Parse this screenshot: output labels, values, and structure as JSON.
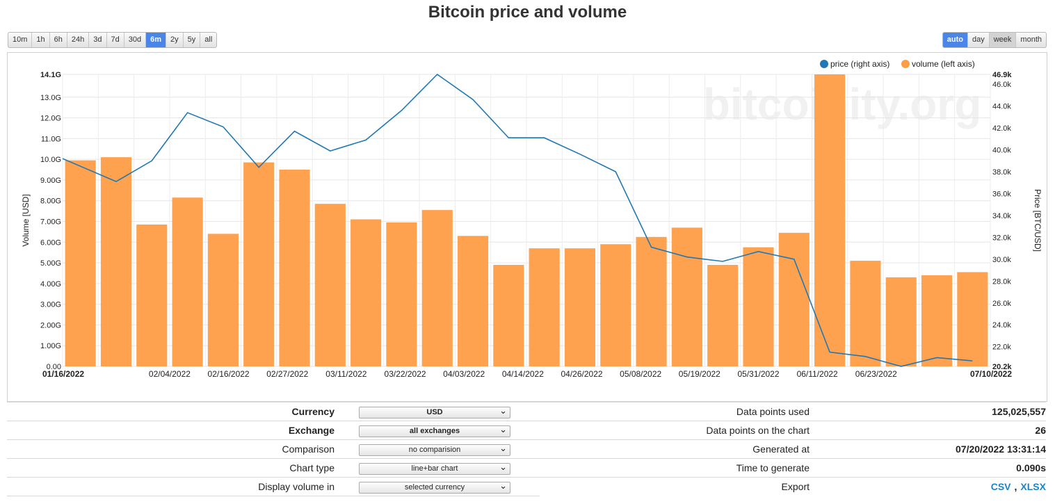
{
  "title": "Bitcoin price and volume",
  "range_buttons": [
    "10m",
    "1h",
    "6h",
    "24h",
    "3d",
    "7d",
    "30d",
    "6m",
    "2y",
    "5y",
    "all"
  ],
  "range_active": "6m",
  "period_buttons": [
    "auto",
    "day",
    "week",
    "month"
  ],
  "period_active": "auto",
  "period_pressed": "week",
  "watermark": "bitcoinity.org",
  "colors": {
    "price": "#1f78b4",
    "volume": "#ff9d46",
    "active_button": "#4a86e8",
    "link": "#1a84c7"
  },
  "chart_data": {
    "type": "bar+line",
    "legend": [
      {
        "name": "price (right axis)",
        "color": "#1f78b4"
      },
      {
        "name": "volume (left axis)",
        "color": "#ff9d46"
      }
    ],
    "legend_placement": "top-right",
    "ylabel_left": "Volume [USD]",
    "ylabel_right": "Price [BTC/USD]",
    "left_ticks": [
      "0.00",
      "1.00G",
      "2.00G",
      "3.00G",
      "4.00G",
      "5.00G",
      "6.00G",
      "7.00G",
      "8.00G",
      "9.00G",
      "10.0G",
      "11.0G",
      "12.0G",
      "13.0G",
      "14.1G"
    ],
    "left_tick_values": [
      0,
      1,
      2,
      3,
      4,
      5,
      6,
      7,
      8,
      9,
      10,
      11,
      12,
      13,
      14.1
    ],
    "ylim_left": [
      0,
      14.1
    ],
    "right_ticks": [
      "20.2k",
      "22.0k",
      "24.0k",
      "26.0k",
      "28.0k",
      "30.0k",
      "32.0k",
      "34.0k",
      "36.0k",
      "38.0k",
      "40.0k",
      "42.0k",
      "44.0k",
      "46.0k",
      "46.9k"
    ],
    "right_tick_values": [
      20.2,
      22,
      24,
      26,
      28,
      30,
      32,
      34,
      36,
      38,
      40,
      42,
      44,
      46,
      46.9
    ],
    "ylim_right": [
      20.2,
      46.9
    ],
    "x_ticks": [
      "01/16/2022",
      "02/04/2022",
      "02/16/2022",
      "02/27/2022",
      "03/11/2022",
      "03/22/2022",
      "04/03/2022",
      "04/14/2022",
      "04/26/2022",
      "05/08/2022",
      "05/19/2022",
      "05/31/2022",
      "06/11/2022",
      "06/23/2022",
      "07/10/2022"
    ],
    "x_tick_index": [
      0,
      3,
      4.65,
      6.3,
      7.95,
      9.6,
      11.25,
      12.9,
      14.55,
      16.2,
      17.85,
      19.5,
      21.15,
      22.8,
      25
    ],
    "x_tick_bold": [
      "01/16/2022",
      "07/10/2022"
    ],
    "grid": true,
    "volume_series": {
      "name": "volume (left axis)",
      "unit": "G USD",
      "values": [
        9.95,
        10.1,
        6.85,
        8.15,
        6.4,
        9.85,
        9.5,
        7.85,
        7.1,
        6.95,
        7.55,
        6.3,
        4.9,
        5.7,
        5.7,
        5.9,
        6.25,
        6.7,
        4.9,
        5.75,
        6.45,
        14.1,
        5.1,
        4.3,
        4.4,
        4.55
      ]
    },
    "price_series": {
      "name": "price (right axis)",
      "unit": "k USD",
      "values": [
        39.2,
        37.1,
        39.0,
        43.4,
        42.1,
        38.4,
        41.7,
        39.9,
        40.9,
        43.6,
        46.9,
        44.6,
        41.1,
        41.1,
        39.6,
        38.0,
        31.1,
        30.2,
        29.8,
        30.7,
        30.0,
        21.5,
        21.1,
        20.2,
        21.0,
        20.7
      ]
    }
  },
  "settings": [
    {
      "label": "Currency",
      "bold": true,
      "value": "USD"
    },
    {
      "label": "Exchange",
      "bold": true,
      "value": "all exchanges"
    },
    {
      "label": "Comparison",
      "bold": false,
      "value": "no comparision"
    },
    {
      "label": "Chart type",
      "bold": false,
      "value": "line+bar chart"
    },
    {
      "label": "Display volume in",
      "bold": false,
      "value": "selected currency"
    }
  ],
  "stats": [
    {
      "label": "Data points used",
      "value": "125,025,557"
    },
    {
      "label": "Data points on the chart",
      "value": "26"
    },
    {
      "label": "Generated at",
      "value": "07/20/2022 13:31:14"
    },
    {
      "label": "Time to generate",
      "value": "0.090s"
    }
  ],
  "export": {
    "label": "Export",
    "csv": "CSV",
    "separator": ",",
    "xlsx": "XLSX"
  }
}
